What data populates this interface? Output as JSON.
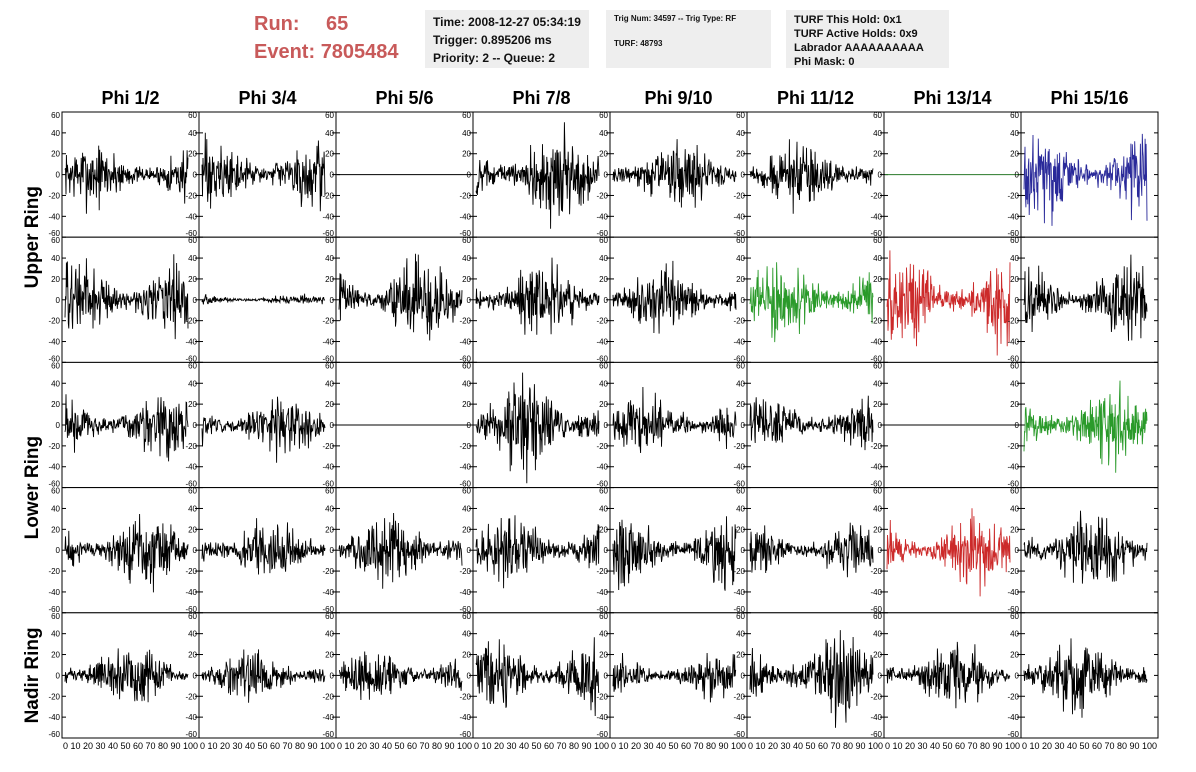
{
  "header": {
    "run_label": "Run:",
    "run_value": "65",
    "event_label": "Event:",
    "event_value": "7805484"
  },
  "info_box_1": {
    "time": "Time: 2008-12-27 05:34:19",
    "trigger": "Trigger: 0.895206 ms",
    "priority": "Priority: 2 -- Queue: 2"
  },
  "info_box_2": {
    "trig": "Trig Num: 34597 -- Trig Type: RF",
    "turf": "TURF: 48793"
  },
  "info_box_3": {
    "this_hold": "TURF This Hold: 0x1",
    "active_holds": "TURF Active Holds: 0x9",
    "labrador": "Labrador AAAAAAAAAA",
    "phi_mask": "Phi Mask: 0"
  },
  "colors": {
    "trace_default": "#000000",
    "trace_blue": "#2a2a9a",
    "trace_green": "#2a9a2a",
    "trace_red": "#cc2a2a",
    "flat_green": "#2a7a2a",
    "title_red": "#c85a5a"
  },
  "chart_data": {
    "type": "line",
    "columns": [
      "Phi 1/2",
      "Phi 3/4",
      "Phi 5/6",
      "Phi 7/8",
      "Phi 9/10",
      "Phi 11/12",
      "Phi 13/14",
      "Phi 15/16"
    ],
    "ring_labels": [
      "Upper Ring",
      "Lower Ring",
      "Nadir Ring"
    ],
    "ylim": [
      -60,
      60
    ],
    "xlim": [
      0,
      100
    ],
    "y_ticks": [
      -60,
      -40,
      -20,
      0,
      20,
      40,
      60
    ],
    "x_ticks": [
      0,
      10,
      20,
      30,
      40,
      50,
      60,
      70,
      80,
      90,
      100
    ],
    "x_tick_label_strip": "0 10 20 30 40 50 60 70 80 90 100",
    "panels": [
      [
        {
          "amplitude": 12,
          "color": "default"
        },
        {
          "amplitude": 13,
          "color": "default"
        },
        {
          "amplitude": 0,
          "color": "default",
          "flat": true
        },
        {
          "amplitude": 16,
          "color": "default"
        },
        {
          "amplitude": 13,
          "color": "default"
        },
        {
          "amplitude": 12,
          "color": "default"
        },
        {
          "amplitude": 0,
          "color": "flat_green",
          "flat": true
        },
        {
          "amplitude": 17,
          "color": "blue"
        }
      ],
      [
        {
          "amplitude": 15,
          "color": "default"
        },
        {
          "amplitude": 2,
          "color": "default"
        },
        {
          "amplitude": 15,
          "color": "default"
        },
        {
          "amplitude": 14,
          "color": "default"
        },
        {
          "amplitude": 12,
          "color": "default"
        },
        {
          "amplitude": 14,
          "color": "green"
        },
        {
          "amplitude": 17,
          "color": "red"
        },
        {
          "amplitude": 15,
          "color": "default"
        }
      ],
      [
        {
          "amplitude": 12,
          "color": "default"
        },
        {
          "amplitude": 11,
          "color": "default"
        },
        {
          "amplitude": 0,
          "color": "default",
          "flat": true
        },
        {
          "amplitude": 17,
          "color": "default"
        },
        {
          "amplitude": 11,
          "color": "default"
        },
        {
          "amplitude": 11,
          "color": "default"
        },
        {
          "amplitude": 0,
          "color": "default",
          "flat": true
        },
        {
          "amplitude": 15,
          "color": "green"
        }
      ],
      [
        {
          "amplitude": 13,
          "color": "default"
        },
        {
          "amplitude": 12,
          "color": "default"
        },
        {
          "amplitude": 14,
          "color": "default"
        },
        {
          "amplitude": 13,
          "color": "default"
        },
        {
          "amplitude": 13,
          "color": "default"
        },
        {
          "amplitude": 10,
          "color": "default"
        },
        {
          "amplitude": 14,
          "color": "red"
        },
        {
          "amplitude": 15,
          "color": "default"
        }
      ],
      [
        {
          "amplitude": 11,
          "color": "default"
        },
        {
          "amplitude": 9,
          "color": "default"
        },
        {
          "amplitude": 10,
          "color": "default"
        },
        {
          "amplitude": 13,
          "color": "default"
        },
        {
          "amplitude": 8,
          "color": "default"
        },
        {
          "amplitude": 15,
          "color": "default"
        },
        {
          "amplitude": 12,
          "color": "default"
        },
        {
          "amplitude": 15,
          "color": "default"
        }
      ]
    ]
  }
}
